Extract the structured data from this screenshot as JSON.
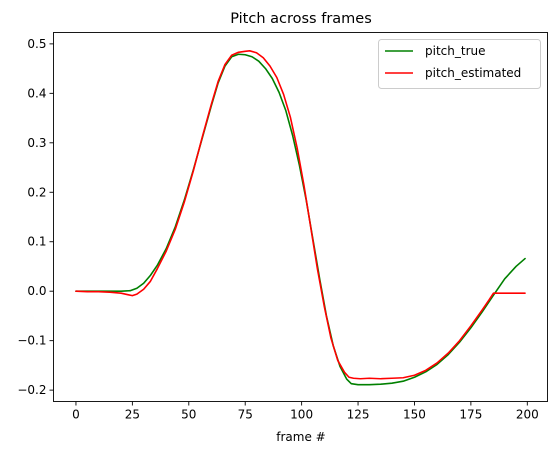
{
  "chart_data": {
    "type": "line",
    "title": "Pitch across frames",
    "xlabel": "frame #",
    "ylabel": "",
    "xlim": [
      -9.95,
      208.95
    ],
    "ylim": [
      -0.223,
      0.523
    ],
    "xticks": [
      0,
      25,
      50,
      75,
      100,
      125,
      150,
      175,
      200
    ],
    "yticks": [
      -0.2,
      -0.1,
      0.0,
      0.1,
      0.2,
      0.3,
      0.4,
      0.5
    ],
    "ytick_labels": [
      "−0.2",
      "−0.1",
      "0.0",
      "0.1",
      "0.2",
      "0.3",
      "0.4",
      "0.5"
    ],
    "xtick_labels": [
      "0",
      "25",
      "50",
      "75",
      "100",
      "125",
      "150",
      "175",
      "200"
    ],
    "legend_position": "top-right",
    "grid": false,
    "series": [
      {
        "name": "pitch_true",
        "color": "#008000",
        "points": [
          [
            0,
            0.0
          ],
          [
            10,
            0.0
          ],
          [
            20,
            0.0
          ],
          [
            24,
            0.001
          ],
          [
            27,
            0.006
          ],
          [
            30,
            0.016
          ],
          [
            33,
            0.032
          ],
          [
            36,
            0.052
          ],
          [
            40,
            0.086
          ],
          [
            44,
            0.13
          ],
          [
            48,
            0.184
          ],
          [
            52,
            0.245
          ],
          [
            56,
            0.31
          ],
          [
            60,
            0.375
          ],
          [
            63,
            0.421
          ],
          [
            66,
            0.455
          ],
          [
            69,
            0.474
          ],
          [
            72,
            0.479
          ],
          [
            75,
            0.478
          ],
          [
            78,
            0.474
          ],
          [
            81,
            0.465
          ],
          [
            84,
            0.45
          ],
          [
            87,
            0.43
          ],
          [
            90,
            0.402
          ],
          [
            93,
            0.365
          ],
          [
            96,
            0.315
          ],
          [
            99,
            0.255
          ],
          [
            102,
            0.185
          ],
          [
            105,
            0.105
          ],
          [
            108,
            0.025
          ],
          [
            111,
            -0.05
          ],
          [
            114,
            -0.11
          ],
          [
            117,
            -0.152
          ],
          [
            120,
            -0.178
          ],
          [
            122,
            -0.187
          ],
          [
            125,
            -0.189
          ],
          [
            130,
            -0.189
          ],
          [
            135,
            -0.188
          ],
          [
            140,
            -0.186
          ],
          [
            145,
            -0.182
          ],
          [
            150,
            -0.174
          ],
          [
            155,
            -0.163
          ],
          [
            160,
            -0.148
          ],
          [
            165,
            -0.128
          ],
          [
            170,
            -0.103
          ],
          [
            175,
            -0.074
          ],
          [
            180,
            -0.042
          ],
          [
            185,
            -0.008
          ],
          [
            190,
            0.025
          ],
          [
            195,
            0.05
          ],
          [
            199,
            0.066
          ]
        ]
      },
      {
        "name": "pitch_estimated",
        "color": "#ff0000",
        "points": [
          [
            0,
            0.0
          ],
          [
            5,
            -0.001
          ],
          [
            10,
            -0.001
          ],
          [
            15,
            -0.002
          ],
          [
            20,
            -0.004
          ],
          [
            23,
            -0.007
          ],
          [
            25,
            -0.009
          ],
          [
            27,
            -0.006
          ],
          [
            30,
            0.004
          ],
          [
            33,
            0.02
          ],
          [
            36,
            0.045
          ],
          [
            40,
            0.081
          ],
          [
            44,
            0.125
          ],
          [
            48,
            0.18
          ],
          [
            52,
            0.243
          ],
          [
            56,
            0.312
          ],
          [
            60,
            0.378
          ],
          [
            63,
            0.424
          ],
          [
            66,
            0.458
          ],
          [
            69,
            0.477
          ],
          [
            72,
            0.483
          ],
          [
            75,
            0.485
          ],
          [
            77,
            0.486
          ],
          [
            80,
            0.482
          ],
          [
            83,
            0.472
          ],
          [
            86,
            0.455
          ],
          [
            89,
            0.432
          ],
          [
            92,
            0.398
          ],
          [
            95,
            0.352
          ],
          [
            98,
            0.29
          ],
          [
            101,
            0.215
          ],
          [
            104,
            0.13
          ],
          [
            107,
            0.045
          ],
          [
            110,
            -0.03
          ],
          [
            113,
            -0.095
          ],
          [
            116,
            -0.14
          ],
          [
            119,
            -0.164
          ],
          [
            121,
            -0.174
          ],
          [
            123,
            -0.176
          ],
          [
            126,
            -0.177
          ],
          [
            130,
            -0.176
          ],
          [
            135,
            -0.177
          ],
          [
            140,
            -0.176
          ],
          [
            145,
            -0.175
          ],
          [
            150,
            -0.17
          ],
          [
            155,
            -0.16
          ],
          [
            160,
            -0.145
          ],
          [
            165,
            -0.125
          ],
          [
            170,
            -0.1
          ],
          [
            175,
            -0.07
          ],
          [
            180,
            -0.038
          ],
          [
            183,
            -0.018
          ],
          [
            185,
            -0.004
          ],
          [
            190,
            -0.004
          ],
          [
            199,
            -0.004
          ]
        ]
      }
    ]
  }
}
